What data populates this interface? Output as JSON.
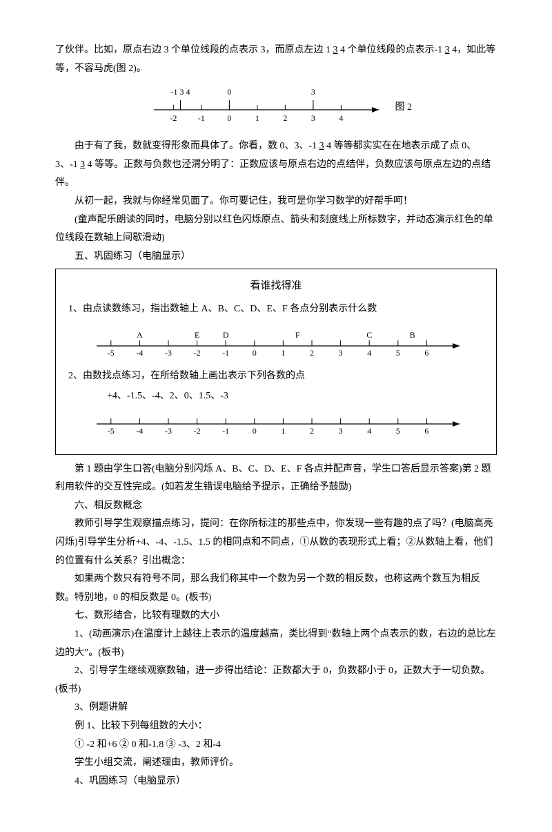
{
  "para1_a": "了伙伴。比如，原点右边 3 个单位线段的点表示 3，而原点左边 1 ",
  "para1_u1": "3",
  "para1_b": " 4 个单位线段的点表示-1 ",
  "para1_u2": "3",
  "para1_c": " 4，如此等等，不容马虎(图 2)。",
  "fig2": {
    "label": "图 2",
    "top_labels": [
      {
        "x": -1.75,
        "text": "-1 3 4",
        "underline_idx": 1
      },
      {
        "x": 0,
        "text": "0"
      },
      {
        "x": 3,
        "text": "3"
      }
    ],
    "top_marks": [
      -1.75,
      0,
      3
    ],
    "ticks": [
      -2,
      -1,
      0,
      1,
      2,
      3,
      4
    ],
    "xmin": -2.7,
    "xmax": 5.2
  },
  "para2_a": "由于有了我，数就变得形象而具体了。你看，数 0、3、-1 ",
  "para2_u1": "3",
  "para2_b": " 4 等等都实实在在地表示成了点 0、3、-1 ",
  "para2_u2": "3",
  "para2_c": " 4 等等。正数与负数也泾渭分明了：正数应该与原点右边的点结伴，负数应该与原点左边的点结伴。",
  "para3": "从初一起，我就与你经常见面了。你可要记住，我可是你学习数学的好帮手呵！",
  "para4": "(童声配乐朗读的同时，电脑分别以红色闪烁原点、箭头和刻度线上所标数字，并动态演示红色的单位线段在数轴上间歇滑动)",
  "sec5": "五、巩固练习（电脑显示）",
  "box": {
    "title": "看谁找得准",
    "q1": "1、由点读数练习，指出数轴上 A、B、C、D、E、F 各点分别表示什么数",
    "axis1": {
      "ticks": [
        -5,
        -4,
        -3,
        -2,
        -1,
        0,
        1,
        2,
        3,
        4,
        5,
        6
      ],
      "points": [
        {
          "x": -4,
          "label": "A"
        },
        {
          "x": -2,
          "label": "E"
        },
        {
          "x": -1,
          "label": "D"
        },
        {
          "x": 1.5,
          "label": "F"
        },
        {
          "x": 4,
          "label": "C"
        },
        {
          "x": 5.5,
          "label": "B"
        }
      ],
      "xmin": -5.5,
      "xmax": 7
    },
    "q2": "2、由数找点练习，在所给数轴上画出表示下列各数的点",
    "q2_nums": "+4、-1.5、-4、2、0、1.5、-3",
    "axis2": {
      "ticks": [
        -5,
        -4,
        -3,
        -2,
        -1,
        0,
        1,
        2,
        3,
        4,
        5,
        6
      ],
      "xmin": -5.5,
      "xmax": 7
    }
  },
  "para5": "第 1 题由学生口答(电脑分别闪烁 A、B、C、D、E、F 各点并配声音，学生口答后显示答案)第 2 题利用软件的交互性完成。(如若发生错误电脑给予提示，正确给予鼓励)",
  "sec6": "六、相反数概念",
  "para6": "教师引导学生观察描点练习，提问：在你所标注的那些点中，你发现一些有趣的点了吗？(电脑高亮闪烁)引导学生分析+4、-4、-1.5、1.5 的相同点和不同点，①从数的表现形式上看；②从数轴上看，他们的位置有什么关系？引出概念：",
  "para7": "如果两个数只有符号不同，那么我们称其中一个数为另一个数的相反数，也称这两个数互为相反数。特别地，0 的相反数是 0。(板书)",
  "sec7": "七、数形结合，比较有理数的大小",
  "para8": "1、(动画演示)在温度计上越往上表示的温度越高，类比得到“数轴上两个点表示的数，右边的总比左边的大”。(板书)",
  "para9": "2、引导学生继续观察数轴，进一步得出结论：正数都大于 0，负数都小于 0，正数大于一切负数。(板书)",
  "para10": "3、例题讲解",
  "para11": "例 1、比较下列每组数的大小：",
  "para12": "①  -2 和+6      ②  0 和-1.8      ③  -3、2 和-4",
  "para13": "学生小组交流，阐述理由，教师评价。",
  "para14": "4、巩固练习（电脑显示）"
}
